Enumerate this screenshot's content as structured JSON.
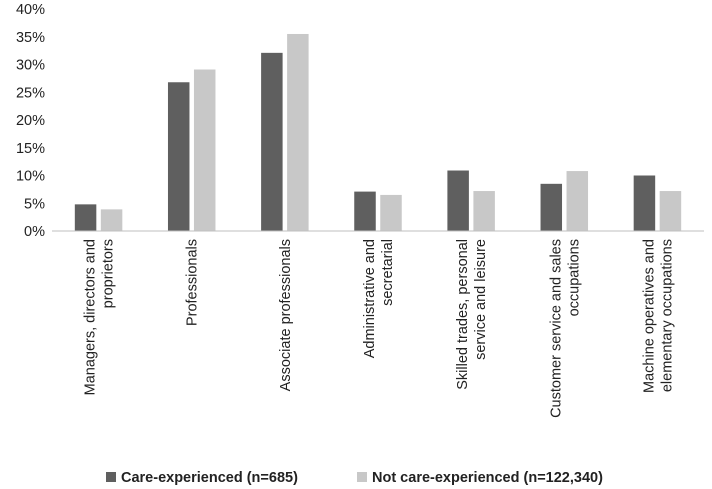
{
  "chart_data": {
    "type": "bar",
    "title": "",
    "xlabel": "",
    "ylabel": "",
    "ylim": [
      0,
      40
    ],
    "yticks": [
      0,
      5,
      10,
      15,
      20,
      25,
      30,
      35,
      40
    ],
    "ytick_labels": [
      "0%",
      "5%",
      "10%",
      "15%",
      "20%",
      "25%",
      "30%",
      "35%",
      "40%"
    ],
    "grid": false,
    "legend_position": "bottom",
    "categories": [
      [
        "Managers, directors and",
        "proprietors"
      ],
      [
        "Professionals"
      ],
      [
        "Associate professionals"
      ],
      [
        "Administrative and",
        "secretarial"
      ],
      [
        "Skilled trades, personal",
        "service and leisure"
      ],
      [
        "Customer service and sales",
        "occupations"
      ],
      [
        "Machine operatives and",
        "elementary occupations"
      ]
    ],
    "series": [
      {
        "name": "Care-experienced (n=685)",
        "color": "#5f5f5f",
        "values": [
          4.8,
          26.8,
          32.1,
          7.1,
          10.9,
          8.5,
          10.0
        ]
      },
      {
        "name": "Not care-experienced (n=122,340)",
        "color": "#c8c8c8",
        "values": [
          3.9,
          29.1,
          35.5,
          6.5,
          7.2,
          10.8,
          7.2
        ]
      }
    ]
  }
}
